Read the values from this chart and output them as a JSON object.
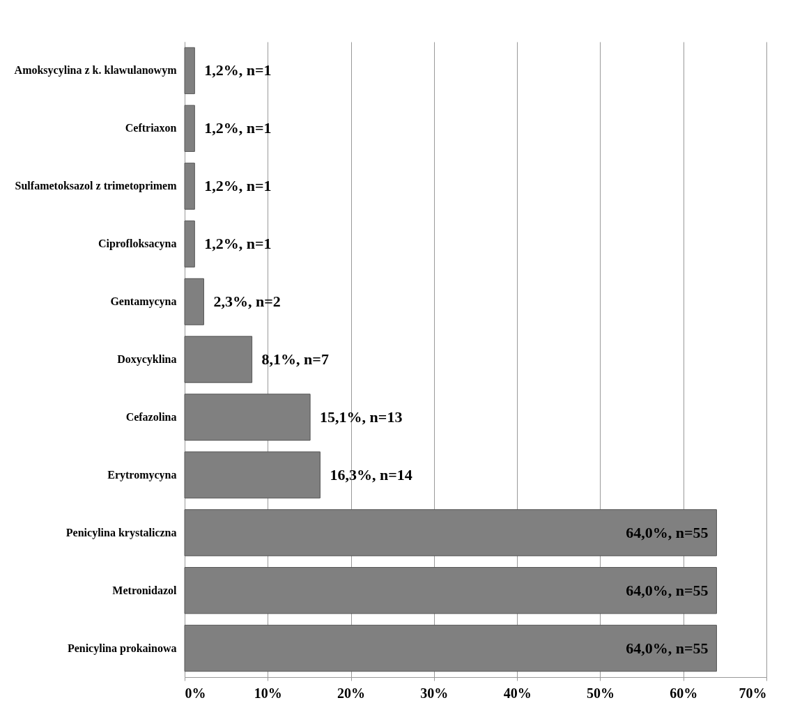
{
  "chart_data": {
    "type": "bar",
    "orientation": "horizontal",
    "categories": [
      "Amoksycylina z k. klawulanowym",
      "Ceftriaxon",
      "Sulfametoksazol z trimetoprimem",
      "Ciprofloksacyna",
      "Gentamycyna",
      "Doxycyklina",
      "Cefazolina",
      "Erytromycyna",
      "Penicylina krystaliczna",
      "Metronidazol",
      "Penicylina prokainowa"
    ],
    "values": [
      1.2,
      1.2,
      1.2,
      1.2,
      2.3,
      8.1,
      15.1,
      16.3,
      64.0,
      64.0,
      64.0
    ],
    "value_labels": [
      "1,2%, n=1",
      "1,2%, n=1",
      "1,2%, n=1",
      "1,2%, n=1",
      "2,3%, n=2",
      "8,1%, n=7",
      "15,1%, n=13",
      "16,3%, n=14",
      "64,0%, n=55",
      "64,0%, n=55",
      "64,0%, n=55"
    ],
    "color": "#808080",
    "xlim": [
      0,
      70
    ],
    "xticks": [
      {
        "value": 0,
        "label": "0%"
      },
      {
        "value": 10,
        "label": "10%"
      },
      {
        "value": 20,
        "label": "20%"
      },
      {
        "value": 30,
        "label": "30%"
      },
      {
        "value": 40,
        "label": "40%"
      },
      {
        "value": 50,
        "label": "50%"
      },
      {
        "value": 60,
        "label": "60%"
      },
      {
        "value": 70,
        "label": "70%"
      }
    ],
    "grid": "x"
  }
}
